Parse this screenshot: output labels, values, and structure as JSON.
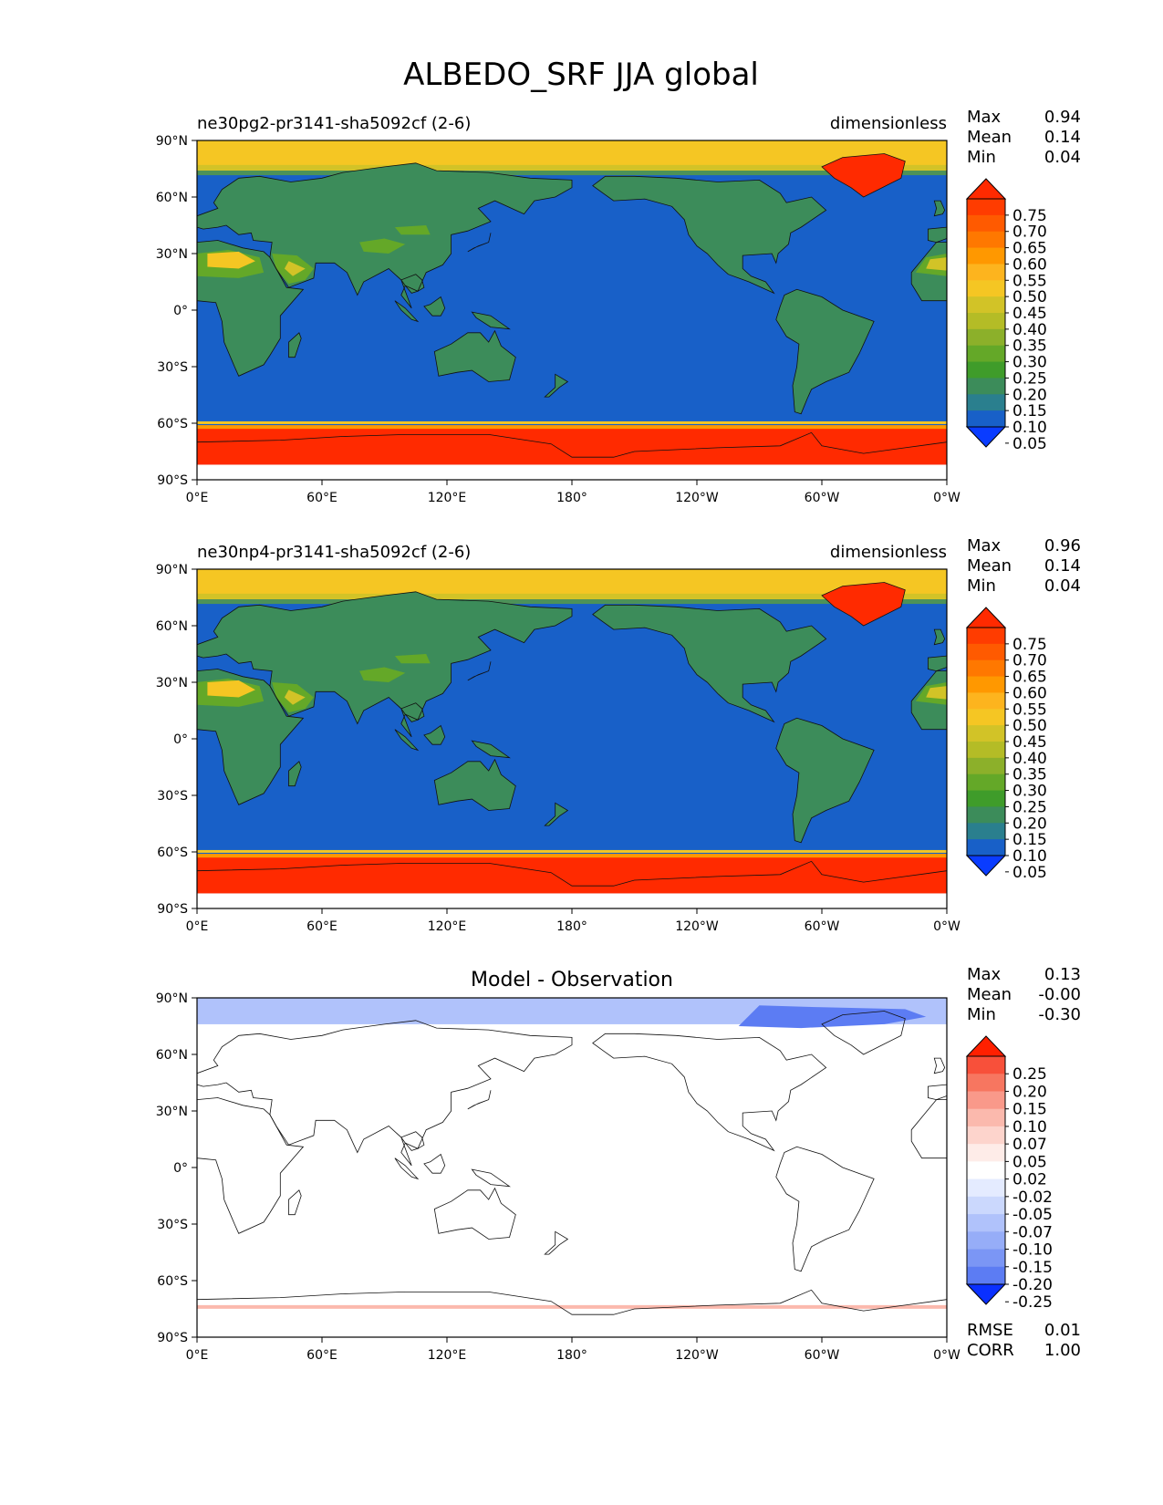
{
  "title": "ALBEDO_SRF JJA global",
  "lat_ticks": [
    "90°N",
    "60°N",
    "30°N",
    "0°",
    "30°S",
    "60°S",
    "90°S"
  ],
  "lon_ticks": [
    "0°E",
    "60°E",
    "120°E",
    "180°",
    "120°W",
    "60°W",
    "0°W"
  ],
  "panels": [
    {
      "id": "test",
      "left_label": "ne30pg2-pr3141-sha5092cf (2-6)",
      "center_label": "",
      "right_label": "dimensionless",
      "stats": [
        {
          "label": "Max",
          "value": "0.94"
        },
        {
          "label": "Mean",
          "value": "0.14"
        },
        {
          "label": "Min",
          "value": "0.04"
        }
      ],
      "colorbar_labels": [
        "0.75",
        "0.70",
        "0.65",
        "0.60",
        "0.55",
        "0.50",
        "0.45",
        "0.40",
        "0.35",
        "0.30",
        "0.25",
        "0.20",
        "0.15",
        "0.10",
        "0.05"
      ],
      "colorbar_colors": [
        "#ff2a00",
        "#ff3c00",
        "#ff5a00",
        "#ff7800",
        "#ff9800",
        "#fdb41e",
        "#f5c623",
        "#d2c327",
        "#b4bc26",
        "#8cb02a",
        "#64a828",
        "#3f9c2a",
        "#3c8c5a",
        "#2a7f8e",
        "#1860c8",
        "#0a3cff"
      ],
      "bottom_stats": []
    },
    {
      "id": "ref",
      "left_label": "ne30np4-pr3141-sha5092cf (2-6)",
      "center_label": "",
      "right_label": "dimensionless",
      "stats": [
        {
          "label": "Max",
          "value": "0.96"
        },
        {
          "label": "Mean",
          "value": "0.14"
        },
        {
          "label": "Min",
          "value": "0.04"
        }
      ],
      "colorbar_labels": [
        "0.75",
        "0.70",
        "0.65",
        "0.60",
        "0.55",
        "0.50",
        "0.45",
        "0.40",
        "0.35",
        "0.30",
        "0.25",
        "0.20",
        "0.15",
        "0.10",
        "0.05"
      ],
      "colorbar_colors": [
        "#ff2a00",
        "#ff3c00",
        "#ff5a00",
        "#ff7800",
        "#ff9800",
        "#fdb41e",
        "#f5c623",
        "#d2c327",
        "#b4bc26",
        "#8cb02a",
        "#64a828",
        "#3f9c2a",
        "#3c8c5a",
        "#2a7f8e",
        "#1860c8",
        "#0a3cff"
      ],
      "bottom_stats": []
    },
    {
      "id": "diff",
      "left_label": "",
      "center_label": "Model - Observation",
      "right_label": "",
      "stats": [
        {
          "label": "Max",
          "value": "0.13"
        },
        {
          "label": "Mean",
          "value": "-0.00"
        },
        {
          "label": "Min",
          "value": "-0.30"
        }
      ],
      "colorbar_labels": [
        "0.25",
        "0.20",
        "0.15",
        "0.10",
        "0.07",
        "0.05",
        "0.02",
        "-0.02",
        "-0.05",
        "-0.07",
        "-0.10",
        "-0.15",
        "-0.20",
        "-0.25"
      ],
      "colorbar_colors": [
        "#ff2000",
        "#f8503a",
        "#f77660",
        "#f9998a",
        "#fbb9ad",
        "#fdd4cc",
        "#feece8",
        "#ffffff",
        "#e4ebff",
        "#cbd8fd",
        "#b0c2fb",
        "#96adf8",
        "#7b96f5",
        "#5c7cf3",
        "#0a30ff"
      ],
      "bottom_stats": [
        {
          "label": "RMSE",
          "value": "0.01"
        },
        {
          "label": "CORR",
          "value": "1.00"
        }
      ]
    }
  ],
  "map_colors": {
    "ocean": "#1860c8",
    "land_low": "#3c8c5a",
    "land_mid": "#64a828",
    "desert": "#d2c327",
    "desert_bright": "#f5c623",
    "arctic": "#f5c623",
    "ice": "#ff2a00",
    "ice_edge": "#ff9800",
    "diff_zero": "#ffffff",
    "diff_neg": "#b0c2fb",
    "diff_neg_strong": "#5c7cf3",
    "diff_pos": "#fbb9ad"
  }
}
